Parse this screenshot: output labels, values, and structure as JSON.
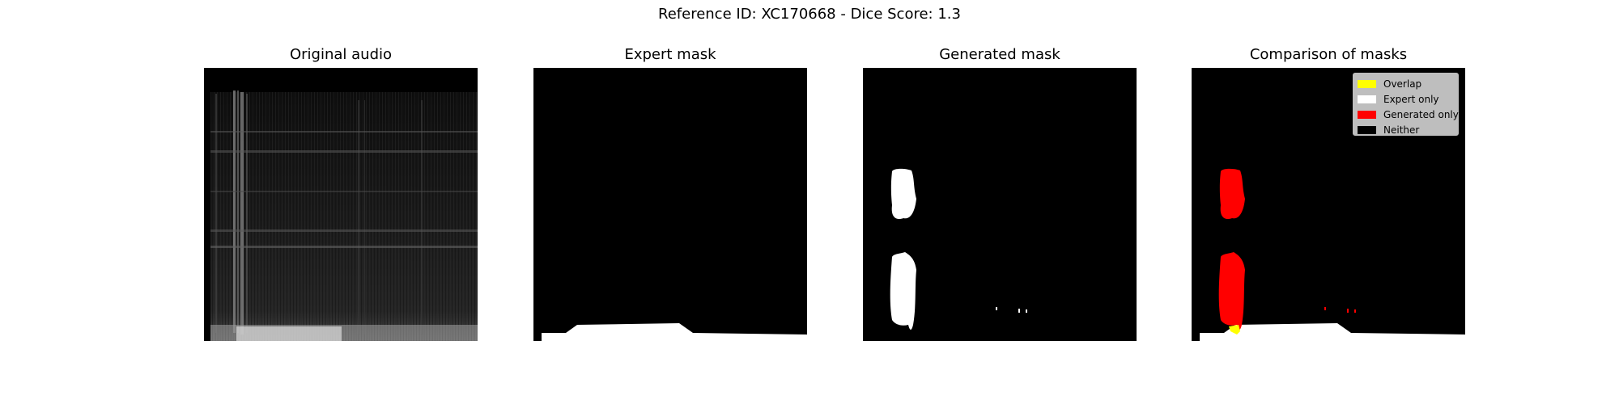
{
  "figure": {
    "title": "Reference ID: XC170668 - Dice Score: 1.3"
  },
  "panels": [
    {
      "title": "Original audio"
    },
    {
      "title": "Expert mask"
    },
    {
      "title": "Generated mask"
    },
    {
      "title": "Comparison of masks"
    }
  ],
  "legend": {
    "items": [
      {
        "label": "Overlap",
        "color": "#ffff00"
      },
      {
        "label": "Expert only",
        "color": "#ffffff"
      },
      {
        "label": "Generated only",
        "color": "#ff0000"
      },
      {
        "label": "Neither",
        "color": "#000000"
      }
    ]
  },
  "colors": {
    "background": "#ffffff",
    "mask_on": "#ffffff",
    "mask_off": "#000000",
    "generated_only": "#ff0000",
    "overlap": "#ffff00"
  }
}
